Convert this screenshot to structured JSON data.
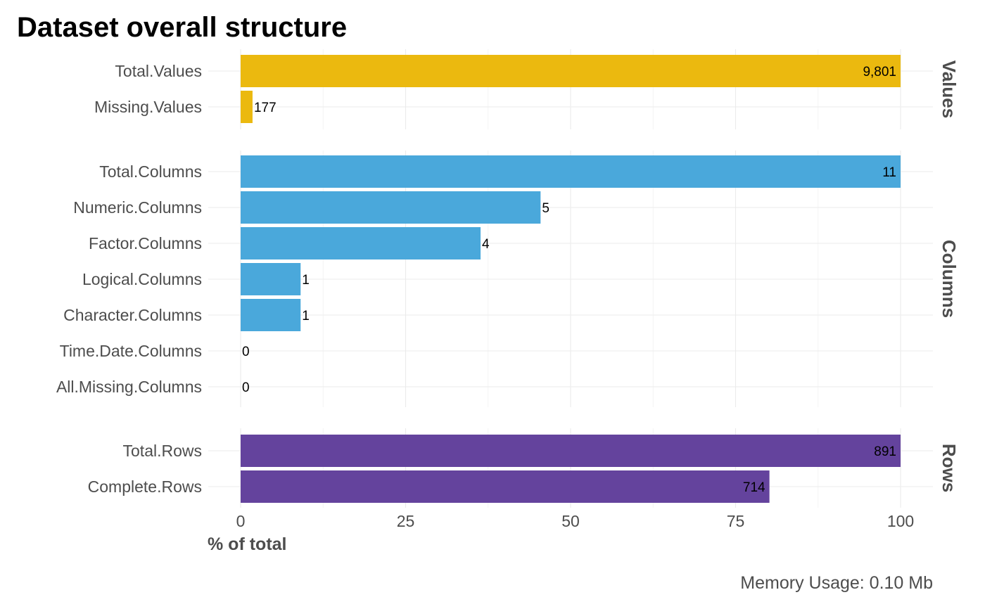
{
  "chart_data": {
    "type": "bar",
    "orientation": "horizontal",
    "title": "Dataset overall structure",
    "xlabel": "% of total",
    "ylabel": "",
    "xlim": [
      0,
      100
    ],
    "x_ticks": [
      0,
      25,
      50,
      75,
      100
    ],
    "caption": "Memory Usage: 0.10 Mb",
    "grid": true,
    "legend": "none",
    "facets": [
      {
        "name": "Values",
        "color": "#EBB90F",
        "categories": [
          "Total.Values",
          "Missing.Values"
        ],
        "percent": [
          100,
          1.806
        ],
        "labels": [
          "9,801",
          "177"
        ],
        "label_positions": [
          "inside",
          "outside"
        ]
      },
      {
        "name": "Columns",
        "color": "#4AA8DB",
        "categories": [
          "Total.Columns",
          "Numeric.Columns",
          "Factor.Columns",
          "Logical.Columns",
          "Character.Columns",
          "Time.Date.Columns",
          "All.Missing.Columns"
        ],
        "percent": [
          100,
          45.45,
          36.36,
          9.09,
          9.09,
          0,
          0
        ],
        "labels": [
          "11",
          "5",
          "4",
          "1",
          "1",
          "0",
          "0"
        ],
        "label_positions": [
          "inside",
          "outside",
          "outside",
          "outside",
          "outside",
          "outside",
          "outside"
        ]
      },
      {
        "name": "Rows",
        "color": "#64439D",
        "categories": [
          "Total.Rows",
          "Complete.Rows"
        ],
        "percent": [
          100,
          80.13
        ],
        "labels": [
          "891",
          "714"
        ],
        "label_positions": [
          "inside",
          "inside"
        ]
      }
    ]
  }
}
